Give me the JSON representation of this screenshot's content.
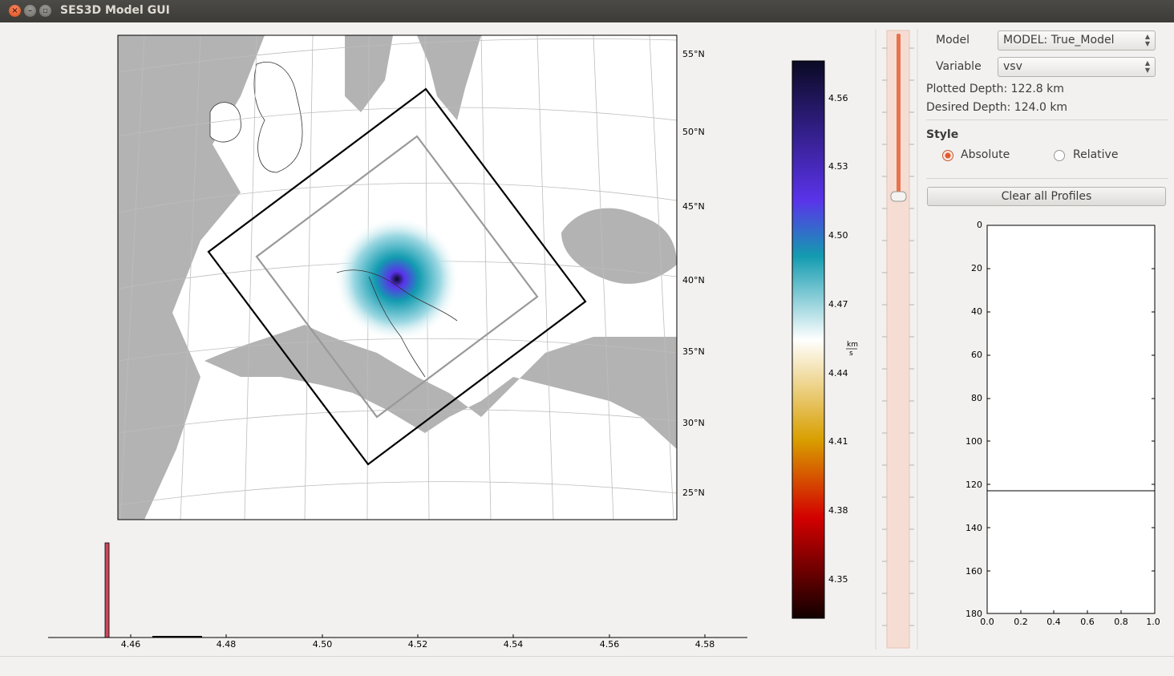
{
  "window": {
    "title": "SES3D Model GUI"
  },
  "map": {
    "lat_labels": [
      "55°N",
      "50°N",
      "45°N",
      "40°N",
      "35°N",
      "30°N",
      "25°N"
    ]
  },
  "colorbar": {
    "ticks": [
      "4.56",
      "4.53",
      "4.50",
      "4.47",
      "4.44",
      "4.41",
      "4.38",
      "4.35"
    ],
    "unit_top": "km",
    "unit_bottom": "s",
    "colors": [
      "#0a0a24",
      "#5a33ea",
      "#139bb0",
      "#ffffff",
      "#d89f00",
      "#d30000",
      "#120000"
    ]
  },
  "histogram": {
    "ticks": [
      "4.46",
      "4.48",
      "4.50",
      "4.52",
      "4.54",
      "4.56",
      "4.58"
    ],
    "bar_color": "#c9485b"
  },
  "depth_slider": {
    "value_fraction": 0.27,
    "accent": "#e9734d"
  },
  "panel": {
    "model_label": "Model",
    "model_value": "MODEL: True_Model",
    "variable_label": "Variable",
    "variable_value": "vsv",
    "plotted_depth": "Plotted Depth: 122.8 km",
    "desired_depth": "Desired Depth: 124.0 km",
    "style_heading": "Style",
    "style_absolute": "Absolute",
    "style_relative": "Relative",
    "clear_button": "Clear all Profiles"
  },
  "profile_plot": {
    "y_ticks": [
      "0",
      "20",
      "40",
      "60",
      "80",
      "100",
      "120",
      "140",
      "160",
      "180"
    ],
    "x_ticks": [
      "0.0",
      "0.2",
      "0.4",
      "0.6",
      "0.8",
      "1.0"
    ],
    "depth_line": 124
  }
}
